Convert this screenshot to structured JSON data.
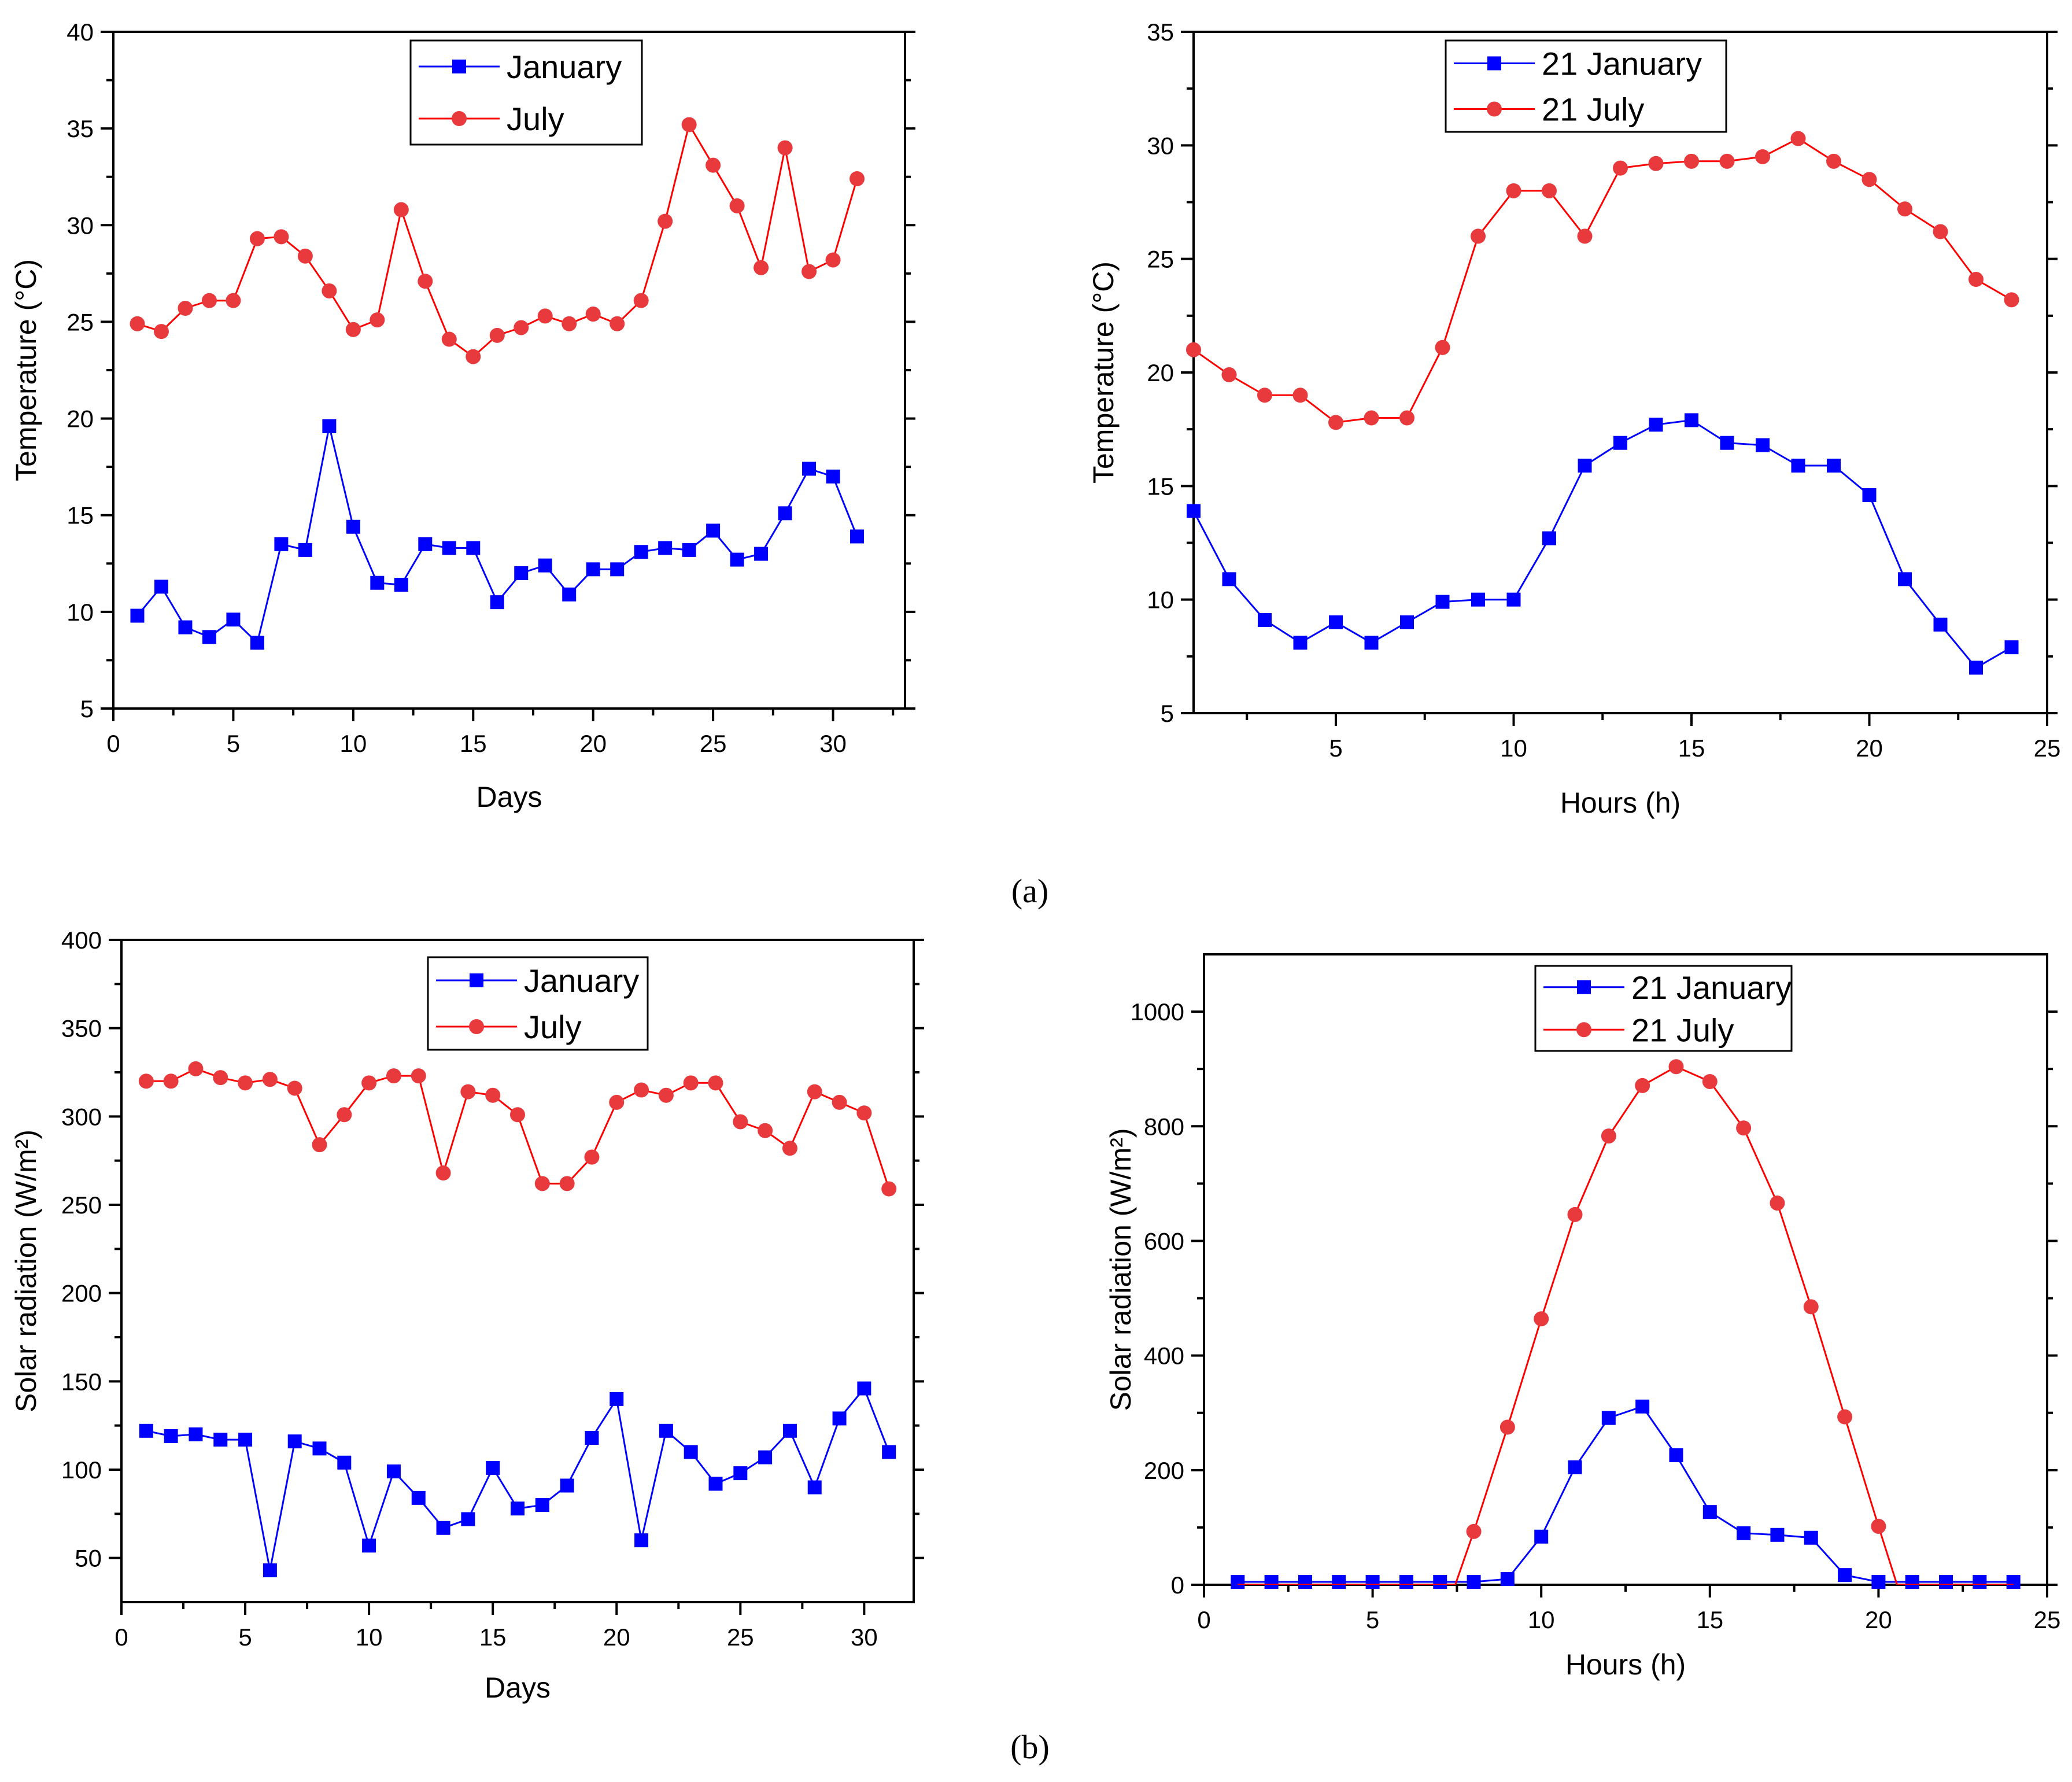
{
  "figure": {
    "panel_labels": [
      "(a)",
      "(b)"
    ],
    "colors": {
      "january": "#0000ff",
      "july": "#ff0000",
      "july_marker": "#e8393c"
    }
  },
  "chart_data": [
    {
      "type": "line",
      "xlabel": "Days",
      "ylabel": "Temperature (°C)",
      "xlim": [
        0,
        33
      ],
      "ylim": [
        5,
        40
      ],
      "xticks": [
        0,
        5,
        10,
        15,
        20,
        25,
        30
      ],
      "yticks": [
        5,
        10,
        15,
        20,
        25,
        30,
        35,
        40
      ],
      "grid": false,
      "legend_position": "top-center",
      "x": [
        1,
        2,
        3,
        4,
        5,
        6,
        7,
        8,
        9,
        10,
        11,
        12,
        13,
        14,
        15,
        16,
        17,
        18,
        19,
        20,
        21,
        22,
        23,
        24,
        25,
        26,
        27,
        28,
        29,
        30,
        31
      ],
      "series": [
        {
          "name": "January",
          "marker": "square",
          "values": [
            9.8,
            11.3,
            9.2,
            8.7,
            9.6,
            8.4,
            13.5,
            13.2,
            19.6,
            14.4,
            11.5,
            11.4,
            13.5,
            13.3,
            13.3,
            10.5,
            12.0,
            12.4,
            10.9,
            12.2,
            12.2,
            13.1,
            13.3,
            13.2,
            14.2,
            12.7,
            13.0,
            15.1,
            17.4,
            17.0,
            13.9
          ]
        },
        {
          "name": "July",
          "marker": "circle",
          "values": [
            24.9,
            24.5,
            25.7,
            26.1,
            26.1,
            29.3,
            29.4,
            28.4,
            26.6,
            24.6,
            25.1,
            30.8,
            27.1,
            24.1,
            23.2,
            24.3,
            24.7,
            25.3,
            24.9,
            25.4,
            24.9,
            26.1,
            30.2,
            35.2,
            33.1,
            31.0,
            27.8,
            34.0,
            27.6,
            28.2,
            32.4
          ]
        }
      ]
    },
    {
      "type": "line",
      "xlabel": "Hours (h)",
      "ylabel": "Temperature (°C)",
      "xlim": [
        1,
        25
      ],
      "ylim": [
        5,
        35
      ],
      "xticks": [
        5,
        10,
        15,
        20,
        25
      ],
      "yticks": [
        5,
        10,
        15,
        20,
        25,
        30,
        35
      ],
      "grid": false,
      "legend_position": "top-center",
      "x": [
        1,
        2,
        3,
        4,
        5,
        6,
        7,
        8,
        9,
        10,
        11,
        12,
        13,
        14,
        15,
        16,
        17,
        18,
        19,
        20,
        21,
        22,
        23,
        24
      ],
      "series": [
        {
          "name": "21 January",
          "marker": "square",
          "values": [
            13.9,
            10.9,
            9.1,
            8.1,
            9.0,
            8.1,
            9.0,
            9.9,
            10.0,
            10.0,
            12.7,
            15.9,
            16.9,
            17.7,
            17.9,
            16.9,
            16.8,
            15.9,
            15.9,
            14.6,
            10.9,
            8.9,
            7.0,
            7.9
          ]
        },
        {
          "name": "21 July",
          "marker": "circle",
          "values": [
            21.0,
            19.9,
            19.0,
            19.0,
            17.8,
            18.0,
            18.0,
            21.1,
            26.0,
            28.0,
            28.0,
            26.0,
            29.0,
            29.2,
            29.3,
            29.3,
            29.5,
            30.3,
            29.3,
            28.5,
            27.2,
            26.2,
            24.1,
            23.2
          ]
        }
      ]
    },
    {
      "type": "line",
      "xlabel": "Days",
      "ylabel": "Solar radiation (W/m²)",
      "xlim": [
        0,
        32
      ],
      "ylim": [
        25,
        400
      ],
      "xticks": [
        0,
        5,
        10,
        15,
        20,
        25,
        30
      ],
      "yticks": [
        50,
        100,
        150,
        200,
        250,
        300,
        350,
        400
      ],
      "grid": false,
      "legend_position": "top-center",
      "x": [
        1,
        2,
        3,
        4,
        5,
        6,
        7,
        8,
        9,
        10,
        11,
        12,
        13,
        14,
        15,
        16,
        17,
        18,
        19,
        20,
        21,
        22,
        23,
        24,
        25,
        26,
        27,
        28,
        29,
        30,
        31
      ],
      "series": [
        {
          "name": "January",
          "marker": "square",
          "values": [
            122,
            119,
            120,
            117,
            117,
            43,
            116,
            112,
            104,
            57,
            99,
            84,
            67,
            72,
            101,
            78,
            80,
            91,
            118,
            140,
            60,
            122,
            110,
            92,
            98,
            107,
            122,
            90,
            129,
            146,
            110
          ]
        },
        {
          "name": "July",
          "marker": "circle",
          "values": [
            320,
            320,
            327,
            322,
            319,
            321,
            316,
            284,
            301,
            319,
            323,
            323,
            268,
            314,
            312,
            301,
            262,
            262,
            277,
            308,
            315,
            312,
            319,
            319,
            297,
            292,
            282,
            314,
            308,
            302,
            259
          ]
        }
      ]
    },
    {
      "type": "line",
      "xlabel": "Hours (h)",
      "ylabel": "Solar radiation (W/m²)",
      "xlim": [
        0,
        25
      ],
      "ylim": [
        0,
        1100
      ],
      "xticks": [
        0,
        5,
        10,
        15,
        20,
        25
      ],
      "yticks": [
        0,
        200,
        400,
        600,
        800,
        1000
      ],
      "grid": false,
      "legend_position": "top-center",
      "x": [
        1,
        2,
        3,
        4,
        5,
        6,
        7,
        8,
        9,
        10,
        11,
        12,
        13,
        14,
        15,
        16,
        17,
        18,
        19,
        20,
        21,
        22,
        23,
        24
      ],
      "series": [
        {
          "name": "21 January",
          "marker": "square",
          "values": [
            5,
            5,
            5,
            5,
            5,
            5,
            5,
            5,
            10,
            84,
            205,
            291,
            311,
            226,
            127,
            90,
            87,
            82,
            17,
            5,
            5,
            5,
            5,
            5
          ]
        },
        {
          "name": "21 July",
          "marker": "circle",
          "line_x": [
            1,
            2,
            3,
            4,
            5,
            6,
            7,
            7.45,
            8,
            9,
            10,
            11,
            12,
            13,
            14,
            15,
            16,
            17,
            18,
            19,
            20,
            20.55,
            21,
            22,
            23,
            24
          ],
          "line_values": [
            0,
            0,
            0,
            0,
            0,
            0,
            0,
            0,
            93,
            275,
            464,
            646,
            783,
            871,
            904,
            878,
            797,
            666,
            485,
            293,
            102,
            0,
            0,
            0,
            0,
            0
          ],
          "marker_x": [
            8,
            9,
            10,
            11,
            12,
            13,
            14,
            15,
            16,
            17,
            18,
            19,
            20
          ],
          "marker_values": [
            93,
            275,
            464,
            646,
            783,
            871,
            904,
            878,
            797,
            666,
            485,
            293,
            102
          ]
        }
      ]
    }
  ]
}
